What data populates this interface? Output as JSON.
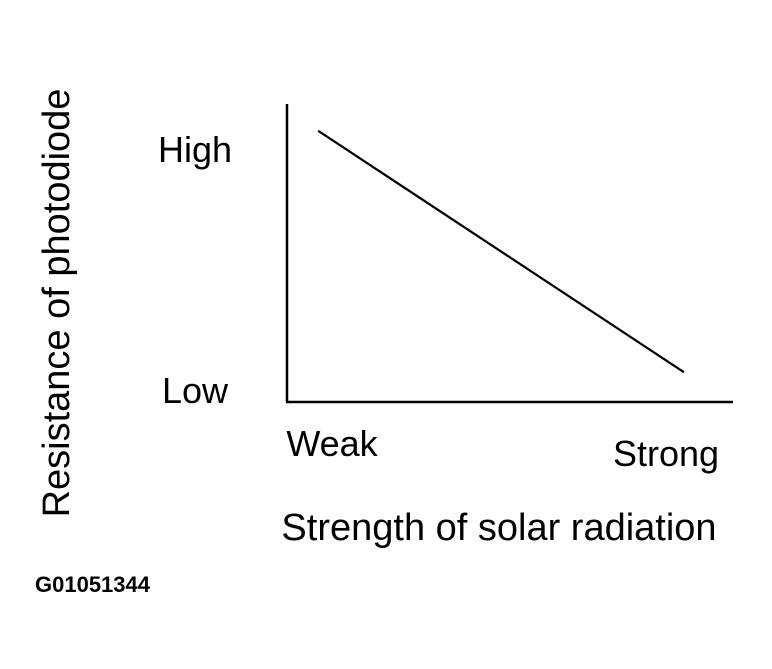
{
  "chart_data": {
    "type": "line",
    "title": "",
    "xlabel": "Strength of solar radiation",
    "ylabel": "Resistance of photodiode",
    "x_tick_labels": [
      "Weak",
      "Strong"
    ],
    "y_tick_labels": [
      "High",
      "Low"
    ],
    "x_scale": "qualitative",
    "y_scale": "qualitative",
    "xlim": [
      0,
      1
    ],
    "ylim": [
      0,
      1
    ],
    "series": [
      {
        "points": [
          {
            "x": 0.07,
            "y": 0.91
          },
          {
            "x": 0.89,
            "y": 0.1
          }
        ]
      }
    ],
    "grid": false,
    "legend": "none",
    "line_color": "#000000"
  },
  "figure_code": "G01051344"
}
